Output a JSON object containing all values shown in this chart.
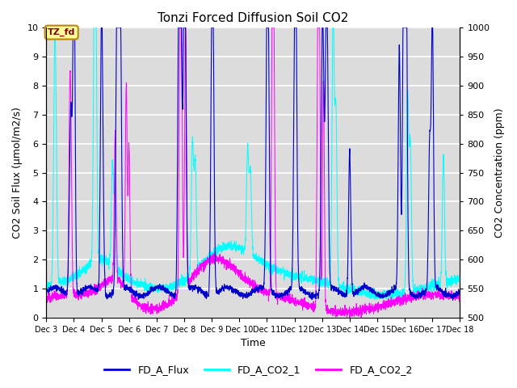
{
  "title": "Tonzi Forced Diffusion Soil CO2",
  "xlabel": "Time",
  "ylabel_left": "CO2 Soil Flux (μmol/m2/s)",
  "ylabel_right": "CO2 Concentration (ppm)",
  "xlim_days": [
    3,
    18
  ],
  "ylim_left": [
    0.0,
    10.0
  ],
  "ylim_right": [
    500,
    1000
  ],
  "x_ticks": [
    3,
    4,
    5,
    6,
    7,
    8,
    9,
    10,
    11,
    12,
    13,
    14,
    15,
    16,
    17,
    18
  ],
  "x_tick_labels": [
    "Dec 3",
    "Dec 4",
    "Dec 5",
    "Dec 6",
    "Dec 7",
    "Dec 8",
    "Dec 9",
    "Dec 10",
    "Dec 11",
    "Dec 12",
    "Dec 13",
    "Dec 14",
    "Dec 15",
    "Dec 16",
    "Dec 17",
    "Dec 18"
  ],
  "color_flux": "#0000CD",
  "color_co2_1": "#00FFFF",
  "color_co2_2": "#FF00FF",
  "legend_labels": [
    "FD_A_Flux",
    "FD_A_CO2_1",
    "FD_A_CO2_2"
  ],
  "tag_text": "TZ_fd",
  "tag_color": "#8B0000",
  "tag_bg": "#FFFF99",
  "tag_edge": "#B8860B",
  "background_color": "#DCDCDC",
  "grid_color": "#FFFFFF",
  "flux_spikes": [
    [
      3.85,
      2.4
    ],
    [
      3.9,
      5.1
    ],
    [
      4.0,
      9.85
    ],
    [
      4.02,
      2.5
    ],
    [
      5.0,
      8.4
    ],
    [
      5.05,
      3.0
    ],
    [
      5.55,
      6.3
    ],
    [
      5.6,
      7.4
    ],
    [
      5.65,
      7.1
    ],
    [
      5.7,
      6.1
    ],
    [
      7.8,
      7.7
    ],
    [
      7.85,
      7.6
    ],
    [
      7.9,
      5.0
    ],
    [
      8.0,
      9.2
    ],
    [
      8.05,
      5.0
    ],
    [
      9.0,
      7.2
    ],
    [
      9.05,
      7.2
    ],
    [
      11.0,
      7.2
    ],
    [
      11.05,
      7.2
    ],
    [
      12.0,
      5.9
    ],
    [
      12.05,
      9.0
    ],
    [
      13.0,
      6.7
    ],
    [
      13.05,
      5.0
    ],
    [
      13.15,
      8.0
    ],
    [
      13.2,
      5.0
    ],
    [
      14.0,
      5.0
    ],
    [
      15.8,
      8.3
    ],
    [
      15.95,
      7.8
    ],
    [
      16.0,
      9.6
    ],
    [
      16.05,
      9.7
    ],
    [
      16.9,
      5.0
    ],
    [
      17.0,
      9.3
    ]
  ],
  "co2_1_spikes": [
    [
      3.3,
      6.6
    ],
    [
      3.35,
      4.0
    ],
    [
      4.75,
      9.4
    ],
    [
      4.8,
      6.0
    ],
    [
      5.4,
      3.5
    ],
    [
      5.5,
      2.5
    ],
    [
      8.3,
      4.5
    ],
    [
      8.4,
      3.8
    ],
    [
      10.3,
      3.5
    ],
    [
      10.4,
      2.8
    ],
    [
      13.4,
      9.4
    ],
    [
      13.5,
      6.0
    ],
    [
      16.1,
      6.8
    ],
    [
      16.2,
      5.0
    ],
    [
      17.4,
      4.4
    ]
  ],
  "co2_2_spikes": [
    [
      3.85,
      6.2
    ],
    [
      3.9,
      4.1
    ],
    [
      5.5,
      5.0
    ],
    [
      5.9,
      7.1
    ],
    [
      6.0,
      5.0
    ],
    [
      7.85,
      9.2
    ],
    [
      7.9,
      9.15
    ],
    [
      8.05,
      9.1
    ],
    [
      11.2,
      9.9
    ],
    [
      11.25,
      8.0
    ],
    [
      12.85,
      9.6
    ],
    [
      12.9,
      9.55
    ],
    [
      13.05,
      7.8
    ]
  ],
  "flux_base_level": 0.9,
  "co2_1_base_level": 1.1,
  "co2_2_base_level": 0.5
}
